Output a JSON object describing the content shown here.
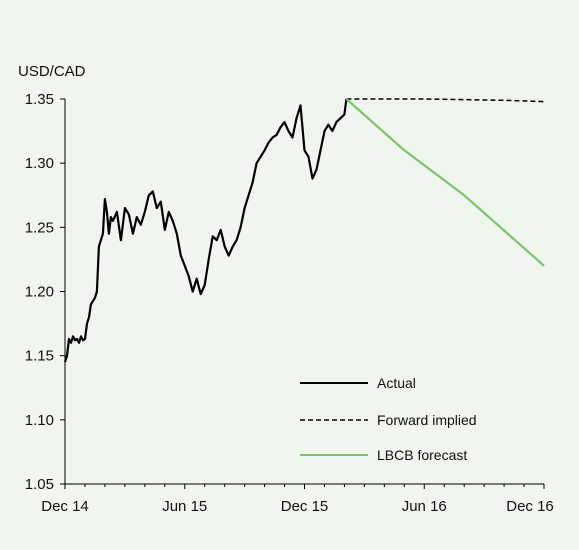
{
  "chart_data": {
    "type": "line",
    "title": "",
    "ylabel": "USD/CAD",
    "xlabel": "",
    "ylim": [
      1.05,
      1.35
    ],
    "y_ticks": [
      "1.05",
      "1.10",
      "1.15",
      "1.20",
      "1.25",
      "1.30",
      "1.35"
    ],
    "x_ticks": [
      "Dec 14",
      "Jun 15",
      "Dec 15",
      "Jun 16",
      "Dec 16"
    ],
    "x_unit": "months since Dec 14",
    "xlim": [
      0,
      24
    ],
    "grid": false,
    "legend_position": "bottom-right",
    "series": [
      {
        "name": "Actual",
        "color": "#000000",
        "style": "solid",
        "points": [
          [
            0.0,
            1.145
          ],
          [
            0.1,
            1.15
          ],
          [
            0.2,
            1.163
          ],
          [
            0.3,
            1.16
          ],
          [
            0.4,
            1.165
          ],
          [
            0.5,
            1.162
          ],
          [
            0.6,
            1.163
          ],
          [
            0.7,
            1.16
          ],
          [
            0.8,
            1.165
          ],
          [
            0.9,
            1.162
          ],
          [
            1.0,
            1.163
          ],
          [
            1.1,
            1.175
          ],
          [
            1.2,
            1.18
          ],
          [
            1.3,
            1.19
          ],
          [
            1.5,
            1.195
          ],
          [
            1.6,
            1.2
          ],
          [
            1.7,
            1.235
          ],
          [
            1.8,
            1.24
          ],
          [
            1.9,
            1.245
          ],
          [
            2.0,
            1.272
          ],
          [
            2.1,
            1.262
          ],
          [
            2.2,
            1.245
          ],
          [
            2.3,
            1.258
          ],
          [
            2.4,
            1.255
          ],
          [
            2.6,
            1.262
          ],
          [
            2.8,
            1.24
          ],
          [
            3.0,
            1.265
          ],
          [
            3.2,
            1.26
          ],
          [
            3.4,
            1.245
          ],
          [
            3.6,
            1.258
          ],
          [
            3.8,
            1.252
          ],
          [
            4.0,
            1.262
          ],
          [
            4.2,
            1.275
          ],
          [
            4.4,
            1.278
          ],
          [
            4.6,
            1.265
          ],
          [
            4.8,
            1.27
          ],
          [
            5.0,
            1.248
          ],
          [
            5.2,
            1.262
          ],
          [
            5.4,
            1.255
          ],
          [
            5.6,
            1.245
          ],
          [
            5.8,
            1.228
          ],
          [
            6.0,
            1.22
          ],
          [
            6.2,
            1.212
          ],
          [
            6.4,
            1.2
          ],
          [
            6.6,
            1.21
          ],
          [
            6.8,
            1.198
          ],
          [
            7.0,
            1.205
          ],
          [
            7.2,
            1.225
          ],
          [
            7.4,
            1.243
          ],
          [
            7.6,
            1.24
          ],
          [
            7.8,
            1.248
          ],
          [
            8.0,
            1.235
          ],
          [
            8.2,
            1.228
          ],
          [
            8.4,
            1.235
          ],
          [
            8.6,
            1.24
          ],
          [
            8.8,
            1.25
          ],
          [
            9.0,
            1.265
          ],
          [
            9.2,
            1.275
          ],
          [
            9.4,
            1.285
          ],
          [
            9.6,
            1.3
          ],
          [
            9.8,
            1.305
          ],
          [
            10.0,
            1.31
          ],
          [
            10.2,
            1.316
          ],
          [
            10.4,
            1.32
          ],
          [
            10.6,
            1.322
          ],
          [
            10.8,
            1.328
          ],
          [
            11.0,
            1.332
          ],
          [
            11.2,
            1.325
          ],
          [
            11.4,
            1.32
          ],
          [
            11.6,
            1.335
          ],
          [
            11.8,
            1.345
          ],
          [
            12.0,
            1.31
          ],
          [
            12.2,
            1.305
          ],
          [
            12.4,
            1.288
          ],
          [
            12.6,
            1.295
          ],
          [
            12.8,
            1.31
          ],
          [
            13.0,
            1.325
          ],
          [
            13.2,
            1.33
          ],
          [
            13.4,
            1.325
          ],
          [
            13.6,
            1.332
          ],
          [
            13.8,
            1.335
          ],
          [
            14.0,
            1.338
          ],
          [
            14.1,
            1.35
          ]
        ]
      },
      {
        "name": "Forward implied",
        "color": "#000000",
        "style": "dashed",
        "points": [
          [
            14.1,
            1.35
          ],
          [
            18,
            1.35
          ],
          [
            22,
            1.349
          ],
          [
            24,
            1.348
          ]
        ]
      },
      {
        "name": "LBCB forecast",
        "color": "#7cc46a",
        "style": "solid",
        "points": [
          [
            14.1,
            1.35
          ],
          [
            17,
            1.31
          ],
          [
            20,
            1.275
          ],
          [
            24,
            1.22
          ]
        ]
      }
    ]
  }
}
